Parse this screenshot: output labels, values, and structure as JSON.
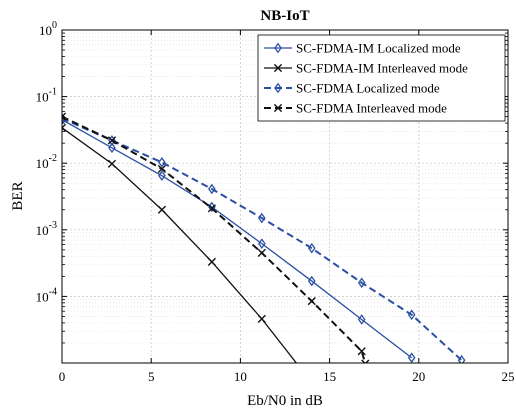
{
  "chart_data": {
    "type": "line",
    "title": "NB-IoT",
    "xlabel": "Eb/N0 in dB",
    "ylabel": "BER",
    "xlim": [
      0,
      25
    ],
    "ylim": [
      1e-05,
      1
    ],
    "yscale": "log",
    "grid": true,
    "legend_position": "top-right",
    "x_ticks": [
      "0",
      "5",
      "10",
      "15",
      "20",
      "25"
    ],
    "y_ticks": [
      {
        "base": "10",
        "exp": "0",
        "value": 1
      },
      {
        "base": "10",
        "exp": "-1",
        "value": 0.1
      },
      {
        "base": "10",
        "exp": "-2",
        "value": 0.01
      },
      {
        "base": "10",
        "exp": "-3",
        "value": 0.001
      },
      {
        "base": "10",
        "exp": "-4",
        "value": 0.0001
      }
    ],
    "series": [
      {
        "name": "SC-FDMA-IM Localized mode",
        "color": "#2a4fa3",
        "line": "solid",
        "marker": "diamond",
        "x": [
          0,
          2.8,
          5.6,
          8.4,
          11.2,
          14.0,
          16.8,
          19.6
        ],
        "y": [
          0.045,
          0.017,
          0.0065,
          0.0022,
          0.00062,
          0.00017,
          4.5e-05,
          1.2e-05
        ]
      },
      {
        "name": "SC-FDMA-IM Interleaved mode",
        "color": "#111111",
        "line": "solid",
        "marker": "x",
        "x": [
          0,
          2.8,
          5.6,
          8.4,
          11.2,
          13.2
        ],
        "y": [
          0.034,
          0.0098,
          0.002,
          0.00033,
          4.6e-05,
          9.5e-06
        ]
      },
      {
        "name": "SC-FDMA Localized mode",
        "color": "#2a4fa3",
        "line": "dashed",
        "marker": "diamond",
        "x": [
          0,
          2.8,
          5.6,
          8.4,
          11.2,
          14.0,
          16.8,
          19.6,
          22.4
        ],
        "y": [
          0.047,
          0.022,
          0.0103,
          0.0041,
          0.0015,
          0.00053,
          0.00016,
          5.3e-05,
          1.1e-05
        ]
      },
      {
        "name": "SC-FDMA Interleaved mode",
        "color": "#111111",
        "line": "dashed",
        "marker": "x",
        "x": [
          0,
          2.8,
          5.6,
          8.4,
          11.2,
          14.0,
          16.8,
          17.0
        ],
        "y": [
          0.05,
          0.022,
          0.0082,
          0.0021,
          0.00045,
          8.5e-05,
          1.5e-05,
          9.8e-06
        ]
      }
    ]
  }
}
